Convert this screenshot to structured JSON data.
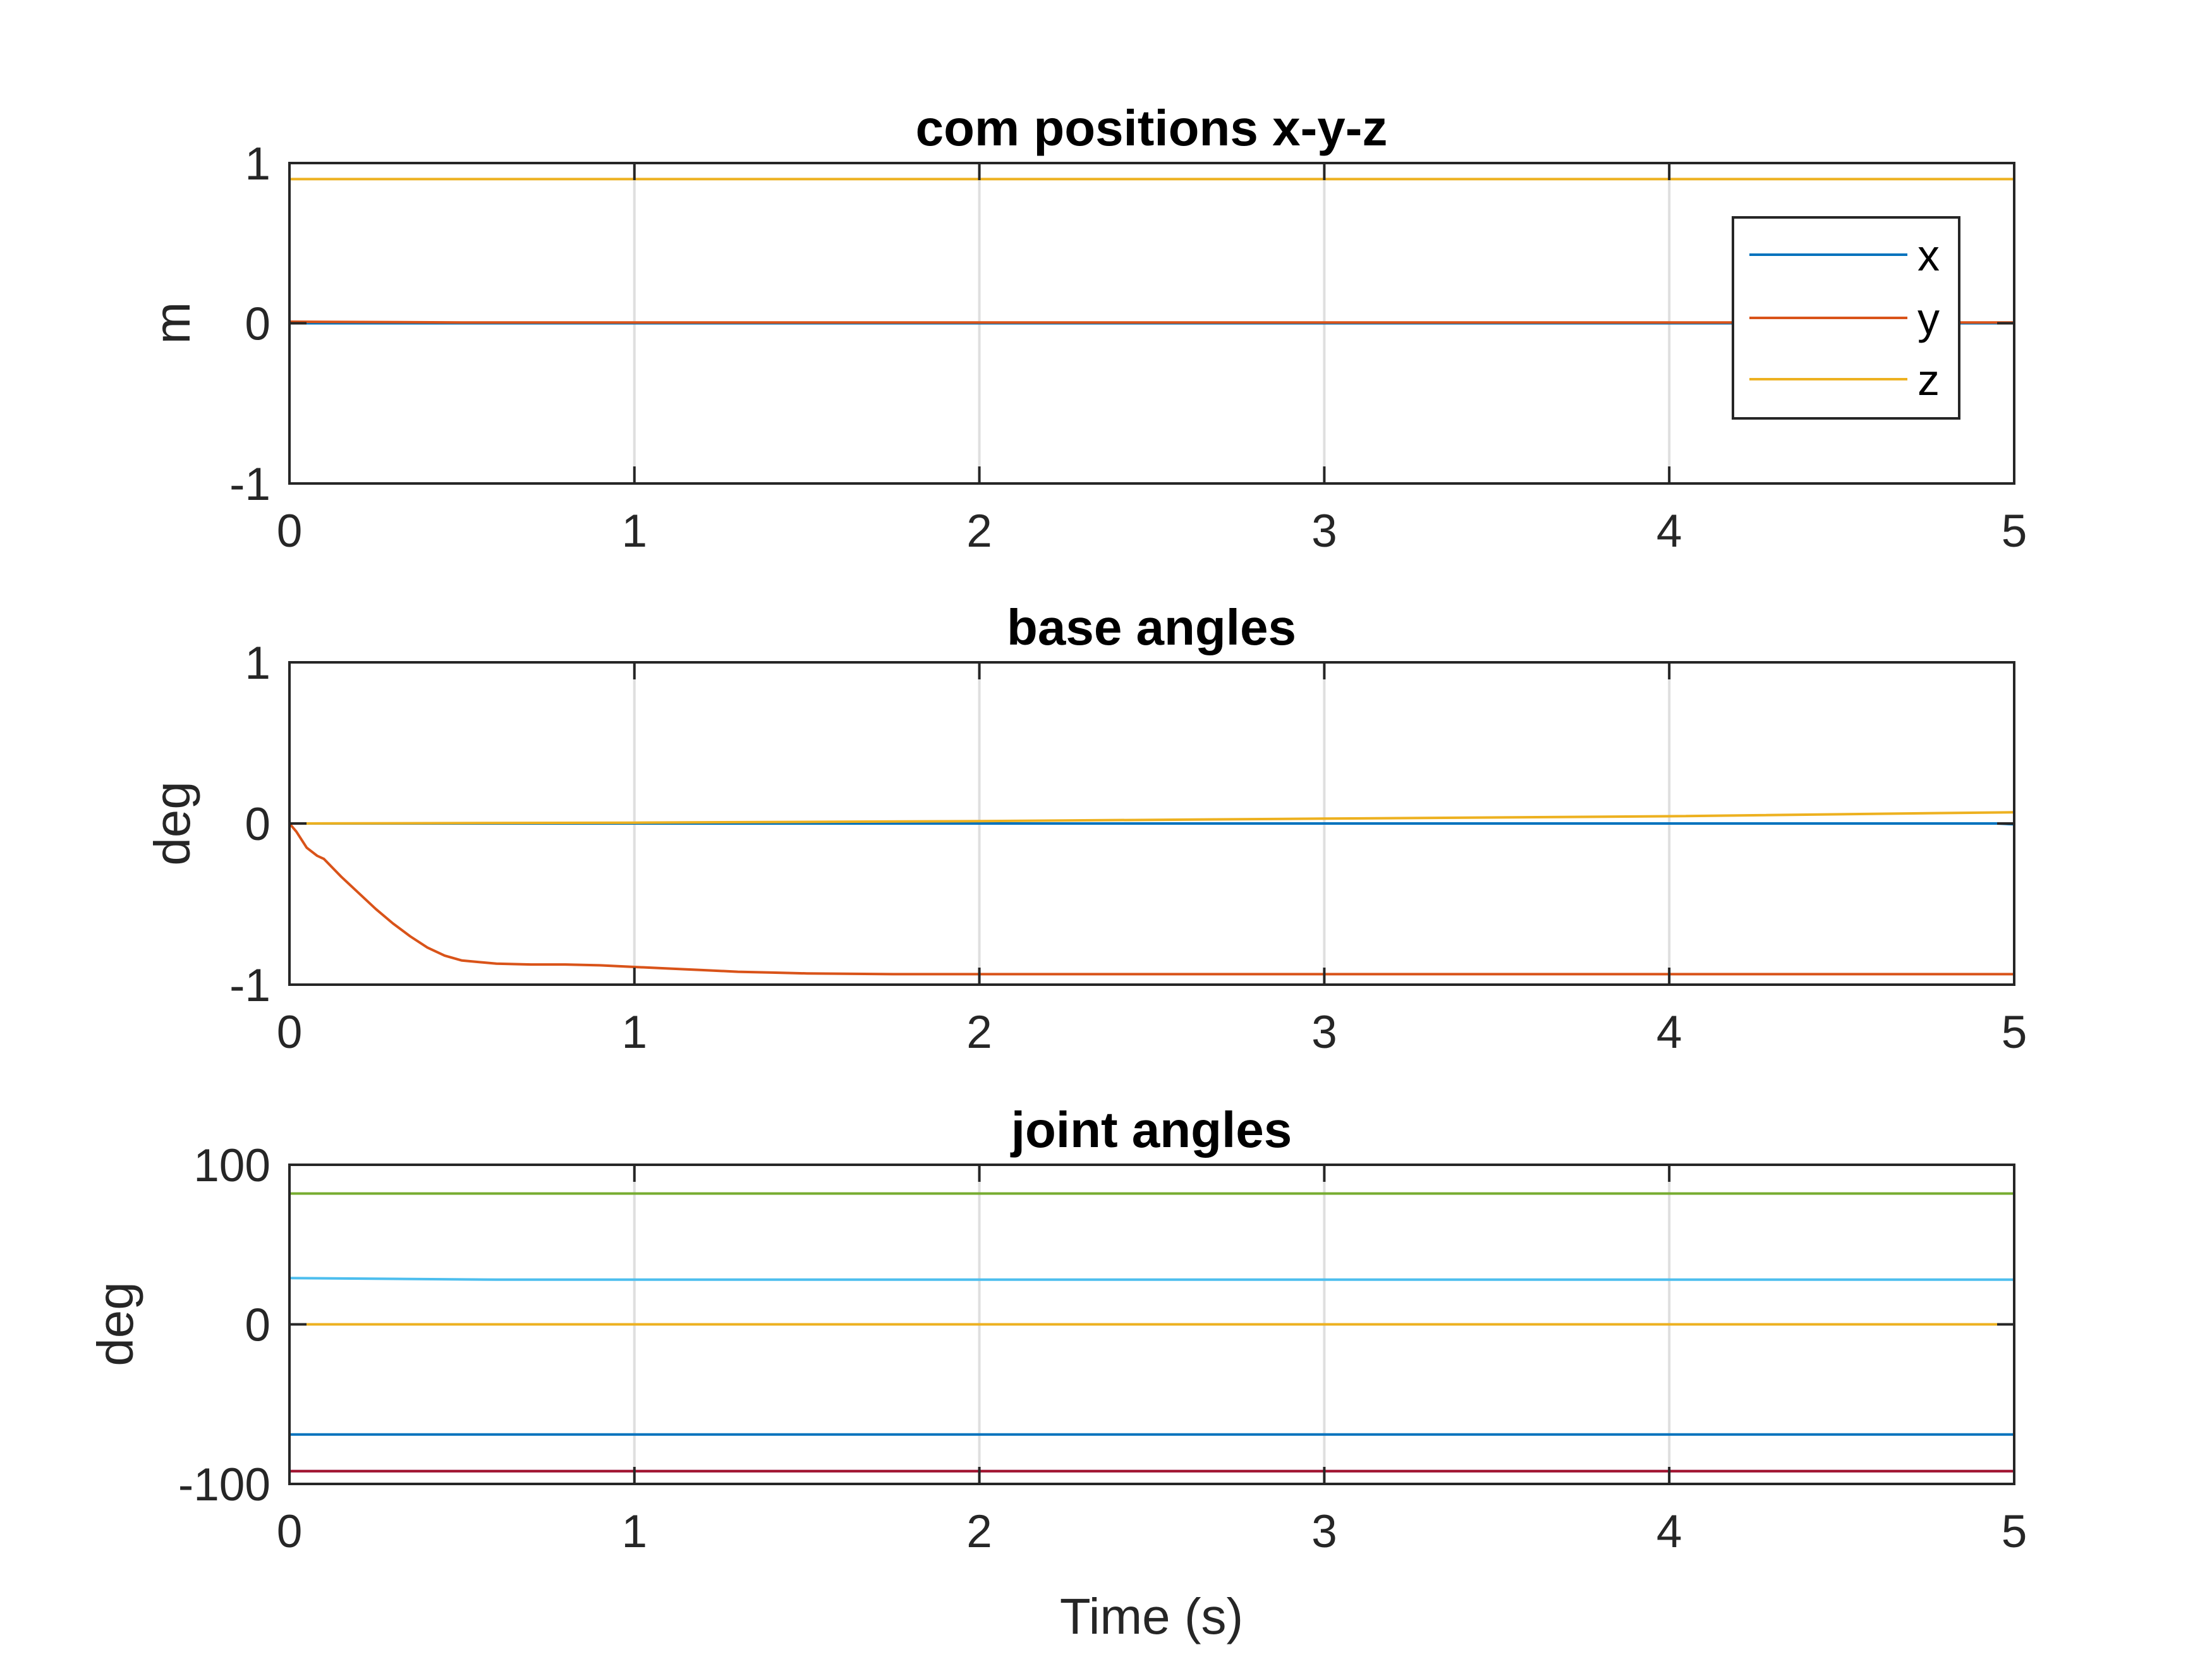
{
  "chart_data": [
    {
      "type": "line",
      "title": "com positions x-y-z",
      "xlabel": "",
      "ylabel": "m",
      "xlim": [
        0,
        5
      ],
      "ylim": [
        -1,
        1
      ],
      "xticks": [
        0,
        1,
        2,
        3,
        4,
        5
      ],
      "yticks": [
        -1,
        0,
        1
      ],
      "grid": "vertical",
      "legend": {
        "placement": "top-right",
        "entries": [
          "x",
          "y",
          "z"
        ]
      },
      "series": [
        {
          "name": "x",
          "color": "#0072BD",
          "x": [
            0,
            1,
            2,
            3,
            4,
            5
          ],
          "y": [
            0.0,
            0.0,
            0.0,
            0.0,
            0.0,
            0.0
          ]
        },
        {
          "name": "y",
          "color": "#D95319",
          "x": [
            0,
            0.5,
            1,
            2,
            3,
            4,
            5
          ],
          "y": [
            0.01,
            0.005,
            0.005,
            0.005,
            0.005,
            0.005,
            0.005
          ]
        },
        {
          "name": "z",
          "color": "#EDB120",
          "x": [
            0,
            1,
            2,
            3,
            4,
            5
          ],
          "y": [
            0.9,
            0.9,
            0.9,
            0.9,
            0.9,
            0.9
          ]
        }
      ]
    },
    {
      "type": "line",
      "title": "base angles",
      "xlabel": "",
      "ylabel": "deg",
      "xlim": [
        0,
        5
      ],
      "ylim": [
        -1,
        1
      ],
      "xticks": [
        0,
        1,
        2,
        3,
        4,
        5
      ],
      "yticks": [
        -1,
        0,
        1
      ],
      "grid": "vertical",
      "series": [
        {
          "color": "#0072BD",
          "x": [
            0,
            1,
            2,
            3,
            4,
            4.95,
            5
          ],
          "y": [
            0.0,
            0.0,
            0.0,
            0.0,
            0.0,
            0.0,
            -0.005
          ]
        },
        {
          "color": "#D95319",
          "x": [
            0,
            0.02,
            0.05,
            0.08,
            0.1,
            0.15,
            0.2,
            0.25,
            0.3,
            0.35,
            0.4,
            0.45,
            0.5,
            0.6,
            0.7,
            0.8,
            0.9,
            1.0,
            1.1,
            1.2,
            1.3,
            1.4,
            1.5,
            1.75,
            2.0,
            3.0,
            4.0,
            5.0
          ],
          "y": [
            0.0,
            -0.05,
            -0.15,
            -0.2,
            -0.22,
            -0.33,
            -0.43,
            -0.53,
            -0.62,
            -0.7,
            -0.77,
            -0.82,
            -0.85,
            -0.87,
            -0.875,
            -0.875,
            -0.88,
            -0.89,
            -0.9,
            -0.91,
            -0.92,
            -0.925,
            -0.93,
            -0.935,
            -0.935,
            -0.935,
            -0.935,
            -0.935
          ]
        },
        {
          "color": "#EDB120",
          "x": [
            0,
            1,
            2,
            3,
            4,
            5
          ],
          "y": [
            0.0,
            0.005,
            0.015,
            0.03,
            0.045,
            0.07
          ]
        }
      ]
    },
    {
      "type": "line",
      "title": "joint angles",
      "xlabel": "Time (s)",
      "ylabel": "deg",
      "xlim": [
        0,
        5
      ],
      "ylim": [
        -100,
        100
      ],
      "xticks": [
        0,
        1,
        2,
        3,
        4,
        5
      ],
      "yticks": [
        -100,
        0,
        100
      ],
      "grid": "vertical",
      "series": [
        {
          "color": "#0072BD",
          "x": [
            0,
            1,
            2,
            3,
            4,
            5
          ],
          "y": [
            -69,
            -69,
            -69,
            -69,
            -69,
            -69
          ]
        },
        {
          "color": "#D95319",
          "x": [
            0,
            1,
            2,
            3,
            4,
            5
          ],
          "y": [
            0,
            0,
            0,
            0,
            0,
            0
          ]
        },
        {
          "color": "#EDB120",
          "x": [
            0,
            1,
            2,
            3,
            4,
            5
          ],
          "y": [
            0,
            0,
            0,
            0,
            0,
            0
          ]
        },
        {
          "color": "#7E2F8E",
          "x": [
            0,
            1,
            2,
            3,
            4,
            5
          ],
          "y": [
            -92,
            -92,
            -92,
            -92,
            -92,
            -92
          ]
        },
        {
          "color": "#77AC30",
          "x": [
            0,
            1,
            2,
            3,
            4,
            5
          ],
          "y": [
            82,
            82,
            82,
            82,
            82,
            82
          ]
        },
        {
          "color": "#4DBEEE",
          "x": [
            0,
            0.3,
            0.6,
            1,
            2,
            3,
            4,
            5
          ],
          "y": [
            29,
            28.5,
            28,
            28,
            28,
            28,
            28,
            28
          ]
        },
        {
          "color": "#A2142F",
          "x": [
            0,
            1,
            2,
            3,
            4,
            5
          ],
          "y": [
            -92,
            -92,
            -92,
            -92,
            -92,
            -92
          ]
        }
      ]
    }
  ]
}
